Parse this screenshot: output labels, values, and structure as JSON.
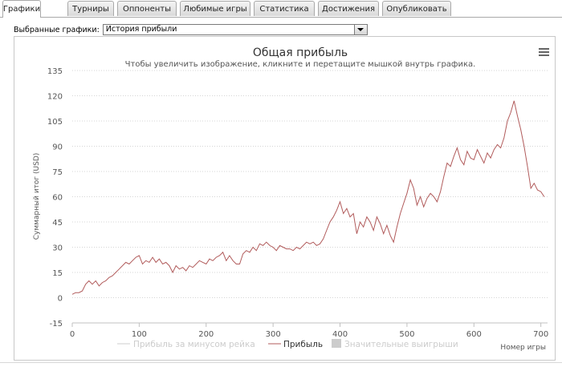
{
  "tabs": [
    {
      "label": "Графики",
      "active": true
    },
    {
      "label": "Турниры",
      "active": false
    },
    {
      "label": "Оппоненты",
      "active": false
    },
    {
      "label": "Любимые игры",
      "active": false
    },
    {
      "label": "Статистика",
      "active": false
    },
    {
      "label": "Достижения",
      "active": false
    },
    {
      "label": "Опубликовать",
      "active": false
    }
  ],
  "selector": {
    "label": "Выбранные графики:",
    "value": "История прибыли"
  },
  "menu_icon": "hamburger-menu-icon",
  "colors": {
    "profit_line": "#b15b5b",
    "grid": "#d5d5d5",
    "axis_text": "#555555",
    "title": "#333333",
    "legend_inactive": "#cccccc",
    "legend_active": "#333333"
  },
  "chart_data": {
    "type": "line",
    "title": "Общая прибыль",
    "subtitle": "Чтобы увеличить изображение, кликните и перетащите мышкой внутрь графика.",
    "ylabel": "Суммарный итог (USD)",
    "xlabel": "Номер игры",
    "ylim": [
      -15,
      135
    ],
    "xlim": [
      0,
      710
    ],
    "yticks": [
      -15,
      0,
      15,
      30,
      45,
      60,
      75,
      90,
      105,
      120,
      135
    ],
    "xticks": [
      0,
      100,
      200,
      300,
      400,
      500,
      600,
      700
    ],
    "grid": true,
    "legend_placement": "bottom",
    "legend": [
      {
        "label": "Прибыль за минусом рейка",
        "active": false,
        "kind": "line"
      },
      {
        "label": "Прибыль",
        "active": true,
        "kind": "line"
      },
      {
        "label": "Значительные выигрыши",
        "active": false,
        "kind": "box"
      }
    ],
    "series": [
      {
        "name": "Прибыль",
        "x": [
          0,
          5,
          10,
          15,
          20,
          25,
          30,
          35,
          40,
          45,
          50,
          55,
          60,
          65,
          70,
          75,
          80,
          85,
          90,
          95,
          100,
          105,
          110,
          115,
          120,
          125,
          130,
          135,
          140,
          145,
          150,
          155,
          160,
          165,
          170,
          175,
          180,
          185,
          190,
          195,
          200,
          205,
          210,
          215,
          220,
          225,
          230,
          235,
          240,
          245,
          250,
          255,
          260,
          265,
          270,
          275,
          280,
          285,
          290,
          295,
          300,
          305,
          310,
          315,
          320,
          325,
          330,
          335,
          340,
          345,
          350,
          355,
          360,
          365,
          370,
          375,
          380,
          385,
          390,
          395,
          400,
          405,
          410,
          415,
          420,
          425,
          430,
          435,
          440,
          445,
          450,
          455,
          460,
          465,
          470,
          475,
          480,
          485,
          490,
          495,
          500,
          505,
          510,
          515,
          520,
          525,
          530,
          535,
          540,
          545,
          550,
          555,
          560,
          565,
          570,
          575,
          580,
          585,
          590,
          595,
          600,
          605,
          610,
          615,
          620,
          625,
          630,
          635,
          640,
          645,
          650,
          655,
          660,
          665,
          670,
          675,
          680,
          685,
          690,
          695,
          700,
          705
        ],
        "values": [
          2,
          3,
          3,
          4,
          8,
          10,
          8,
          10,
          7,
          9,
          10,
          12,
          13,
          15,
          17,
          19,
          21,
          20,
          22,
          24,
          25,
          20,
          22,
          21,
          24,
          21,
          23,
          20,
          21,
          19,
          15,
          19,
          17,
          18,
          16,
          19,
          18,
          20,
          22,
          21,
          20,
          23,
          22,
          24,
          25,
          27,
          22,
          25,
          22,
          20,
          20,
          26,
          28,
          27,
          30,
          28,
          32,
          31,
          33,
          31,
          30,
          28,
          31,
          30,
          29,
          29,
          28,
          30,
          29,
          31,
          33,
          32,
          33,
          31,
          32,
          35,
          40,
          45,
          48,
          52,
          57,
          50,
          53,
          48,
          50,
          38,
          45,
          42,
          48,
          45,
          40,
          48,
          44,
          38,
          43,
          37,
          33,
          42,
          50,
          56,
          62,
          70,
          65,
          55,
          60,
          54,
          59,
          62,
          60,
          57,
          63,
          72,
          80,
          78,
          84,
          89,
          82,
          79,
          87,
          83,
          82,
          88,
          84,
          80,
          86,
          83,
          88,
          91,
          89,
          95,
          105,
          110,
          117,
          108,
          100,
          90,
          78,
          65,
          68,
          64,
          63,
          60
        ]
      }
    ]
  }
}
